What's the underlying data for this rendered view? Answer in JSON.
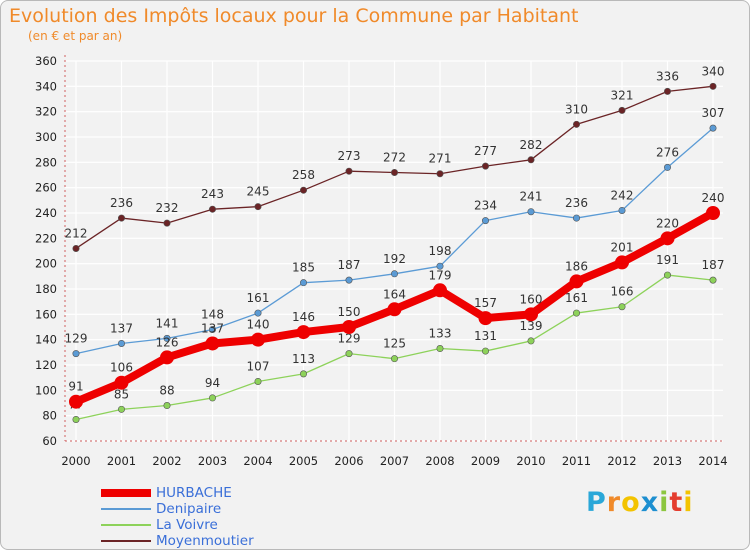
{
  "chart_data": {
    "type": "line",
    "title": "Evolution des Impôts locaux pour la Commune par Habitant",
    "subtitle": "(en € et par an)",
    "xlabel": "",
    "ylabel": "",
    "ylim": [
      60,
      360
    ],
    "ytick_step": 20,
    "grid": true,
    "legend_position": "bottom-left",
    "x": [
      "2000",
      "2001",
      "2002",
      "2003",
      "2004",
      "2005",
      "2006",
      "2007",
      "2008",
      "2009",
      "2010",
      "2011",
      "2012",
      "2013",
      "2014"
    ],
    "series": [
      {
        "name": "Moyenmoutier",
        "color": "#6b2426",
        "values": [
          212,
          236,
          232,
          243,
          245,
          258,
          273,
          272,
          271,
          277,
          282,
          310,
          321,
          336,
          340
        ]
      },
      {
        "name": "Denipaire",
        "color": "#5b9bd5",
        "values": [
          129,
          137,
          141,
          148,
          161,
          185,
          187,
          192,
          198,
          234,
          241,
          236,
          242,
          276,
          307
        ]
      },
      {
        "name": "La Voivre",
        "color": "#8dd25a",
        "values": [
          77,
          85,
          88,
          94,
          107,
          113,
          129,
          125,
          133,
          131,
          139,
          161,
          166,
          191,
          187
        ]
      },
      {
        "name": "HURBACHE",
        "color": "#ee0000",
        "values": [
          91,
          106,
          126,
          137,
          140,
          146,
          150,
          164,
          179,
          157,
          160,
          186,
          201,
          220,
          240
        ]
      }
    ]
  },
  "legend": {
    "items": [
      {
        "label": "HURBACHE",
        "color": "#ee0000"
      },
      {
        "label": "Denipaire",
        "color": "#5b9bd5"
      },
      {
        "label": "La Voivre",
        "color": "#8dd25a"
      },
      {
        "label": "Moyenmoutier",
        "color": "#6b2426"
      }
    ]
  },
  "logo": {
    "text": "Proxiti",
    "colors": [
      "#2aa7d8",
      "#f08a2a",
      "#f3c300",
      "#1d8fd0",
      "#8cc63f",
      "#e43d2f",
      "#f3c300"
    ]
  }
}
